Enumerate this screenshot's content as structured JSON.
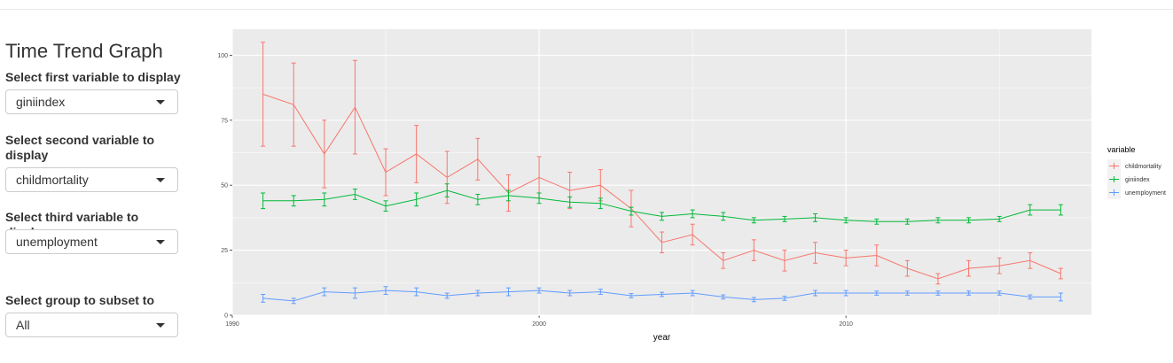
{
  "sidebar": {
    "title": "Time Trend Graph",
    "controls": [
      {
        "label": "Select first variable to display",
        "value": "giniindex"
      },
      {
        "label": "Select second variable to display",
        "value": "childmortality"
      },
      {
        "label": "Select third variable to display",
        "value": "unemployment"
      },
      {
        "label": "Select group to subset to",
        "value": "All"
      }
    ]
  },
  "colors": {
    "panel": "#ebebeb",
    "grid": "#ffffff",
    "childmortality": "#F8766D",
    "giniindex": "#00BA38",
    "unemployment": "#619CFF"
  },
  "chart_data": {
    "type": "line",
    "xlabel": "year",
    "ylabel": "",
    "xlim": [
      1990,
      2018
    ],
    "ylim": [
      0,
      110
    ],
    "x_ticks": [
      1990,
      2000,
      2010
    ],
    "y_ticks": [
      0,
      25,
      50,
      75,
      100
    ],
    "grid": true,
    "legend_title": "variable",
    "legend_position": "right",
    "series": [
      {
        "name": "childmortality",
        "color": "#F8766D",
        "x": [
          1991,
          1992,
          1993,
          1994,
          1995,
          1996,
          1997,
          1998,
          1999,
          2000,
          2001,
          2002,
          2003,
          2004,
          2005,
          2006,
          2007,
          2008,
          2009,
          2010,
          2011,
          2012,
          2013,
          2014,
          2015,
          2016,
          2017
        ],
        "y": [
          85,
          81,
          62,
          80,
          55,
          62,
          53,
          60,
          47,
          53,
          48,
          50,
          41,
          28,
          31,
          21,
          25,
          21,
          24,
          22,
          23,
          18,
          14,
          18,
          19,
          21,
          16
        ],
        "err": [
          20,
          16,
          13,
          18,
          9,
          11,
          10,
          8,
          7,
          8,
          7,
          6,
          7,
          4,
          4,
          3,
          4,
          4,
          4,
          3,
          4,
          3,
          2,
          3,
          3,
          3,
          2
        ]
      },
      {
        "name": "giniindex",
        "color": "#00BA38",
        "x": [
          1991,
          1992,
          1993,
          1994,
          1995,
          1996,
          1997,
          1998,
          1999,
          2000,
          2001,
          2002,
          2003,
          2004,
          2005,
          2006,
          2007,
          2008,
          2009,
          2010,
          2011,
          2012,
          2013,
          2014,
          2015,
          2016,
          2017
        ],
        "y": [
          44,
          44,
          44.5,
          46.5,
          42,
          44.5,
          48,
          44.5,
          46,
          45,
          43.5,
          43,
          40,
          38,
          39,
          38,
          36.5,
          37,
          37.5,
          36.5,
          36,
          36,
          36.5,
          36.5,
          37,
          40.5,
          40.5
        ],
        "err": [
          3,
          2,
          2.5,
          2,
          2,
          2.5,
          2.5,
          2,
          2,
          2,
          2,
          2,
          1.5,
          1.5,
          1.5,
          1.5,
          1,
          1,
          1.5,
          1,
          1,
          1,
          1,
          1,
          1,
          2,
          2
        ]
      },
      {
        "name": "unemployment",
        "color": "#619CFF",
        "x": [
          1991,
          1992,
          1993,
          1994,
          1995,
          1996,
          1997,
          1998,
          1999,
          2000,
          2001,
          2002,
          2003,
          2004,
          2005,
          2006,
          2007,
          2008,
          2009,
          2010,
          2011,
          2012,
          2013,
          2014,
          2015,
          2016,
          2017
        ],
        "y": [
          6.5,
          5.5,
          9,
          8.5,
          9.5,
          9,
          7.5,
          8.5,
          9,
          9.5,
          8.5,
          9,
          7.5,
          8,
          8.5,
          7,
          6,
          6.5,
          8.5,
          8.5,
          8.5,
          8.5,
          8.5,
          8.5,
          8.5,
          7,
          7
        ],
        "err": [
          1.5,
          1,
          1.5,
          2,
          1.5,
          1.5,
          1,
          1,
          1.5,
          1,
          1,
          1,
          0.8,
          0.8,
          1,
          0.8,
          0.8,
          0.8,
          1,
          1,
          0.8,
          0.8,
          0.8,
          0.8,
          0.8,
          0.8,
          1.5
        ]
      }
    ]
  }
}
